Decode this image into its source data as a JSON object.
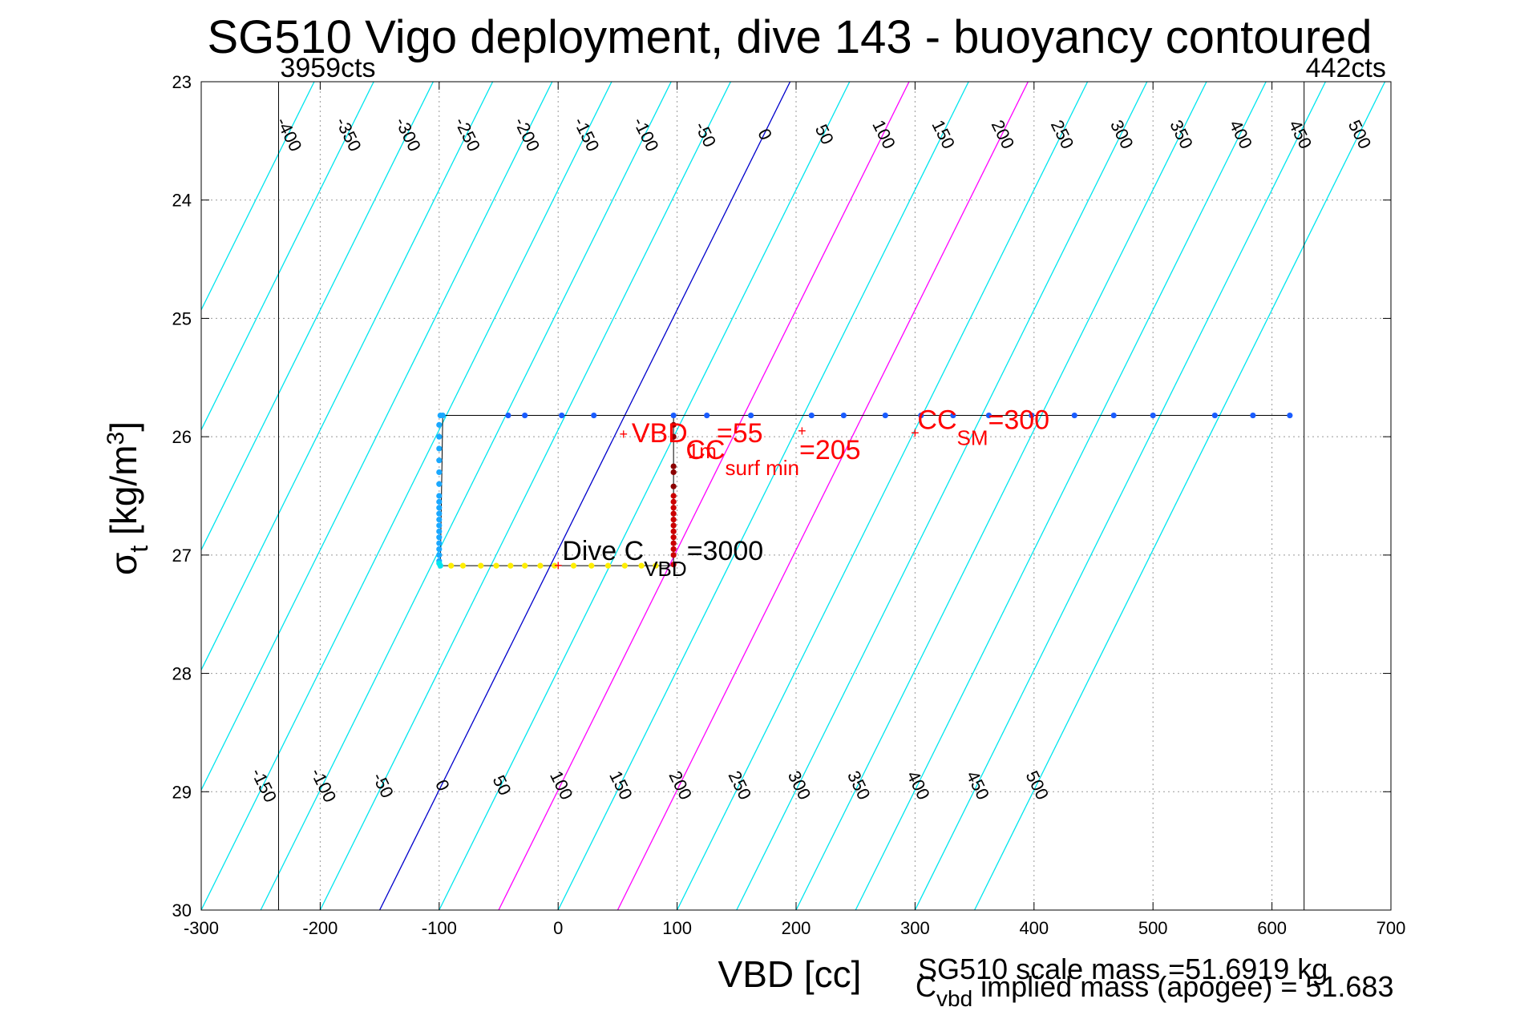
{
  "chart_data": {
    "type": "scatter",
    "title": "SG510 Vigo deployment, dive 143 - buoyancy contoured",
    "xlabel": "VBD [cc]",
    "ylabel": "σ_t [kg/m^3]",
    "ylabel_parts": {
      "main": "σ",
      "sub": "t",
      "unit": " [kg/m",
      "unit_sup": "3",
      "unit_end": "]"
    },
    "xlim": [
      -300,
      700
    ],
    "ylim": [
      23,
      30
    ],
    "y_reversed": true,
    "grid": true,
    "x_ticks": [
      -300,
      -200,
      -100,
      0,
      100,
      200,
      300,
      400,
      500,
      600,
      700
    ],
    "y_ticks": [
      23,
      24,
      25,
      26,
      27,
      28,
      29,
      30
    ],
    "x_tick_labels": [
      "-300",
      "-200",
      "-100",
      "0",
      "100",
      "200",
      "300",
      "400",
      "500",
      "600",
      "700"
    ],
    "y_tick_labels": [
      "23",
      "24",
      "25",
      "26",
      "27",
      "28",
      "29",
      "30"
    ],
    "vbd_limits": [
      {
        "vbd": -235,
        "label": "3959cts"
      },
      {
        "vbd": 627,
        "label": "442cts"
      }
    ],
    "contour_levels": [
      -400,
      -350,
      -300,
      -250,
      -200,
      -150,
      -100,
      -50,
      0,
      50,
      100,
      150,
      200,
      250,
      300,
      350,
      400,
      450,
      500
    ],
    "contour_zero_vbd_at_sigma23": 195,
    "contour_zero_vbd_at_sigma30": -150,
    "contour_colors": {
      "default": "#00e5ee",
      "zero": "#0000cc",
      "highlight": "#ff00ff"
    },
    "highlight_levels": [
      100,
      200
    ],
    "top_contour_labels": [
      "-400",
      "-350",
      "-300",
      "-250",
      "-200",
      "-150",
      "-100",
      "-50",
      "0",
      "50",
      "100",
      "150",
      "200",
      "250",
      "300",
      "350",
      "400",
      "450",
      "500"
    ],
    "bottom_contour_labels": [
      "-150",
      "-100",
      "-50",
      "0",
      "50",
      "100",
      "150",
      "200",
      "250",
      "300",
      "350",
      "400",
      "450",
      "500"
    ],
    "series": [
      {
        "color": "#1a5cff",
        "points": [
          [
            97,
            25.82
          ],
          [
            -42,
            25.82
          ],
          [
            -28,
            25.82
          ],
          [
            3,
            25.82
          ],
          [
            30,
            25.82
          ],
          [
            125,
            25.82
          ],
          [
            162,
            25.82
          ],
          [
            213,
            25.82
          ],
          [
            240,
            25.82
          ],
          [
            275,
            25.82
          ],
          [
            305,
            25.82
          ],
          [
            332,
            25.82
          ],
          [
            362,
            25.82
          ],
          [
            398,
            25.82
          ],
          [
            434,
            25.82
          ],
          [
            467,
            25.82
          ],
          [
            500,
            25.82
          ],
          [
            552,
            25.82
          ],
          [
            584,
            25.82
          ],
          [
            615,
            25.82
          ]
        ]
      },
      {
        "color": "#1aa8ff",
        "points": [
          [
            -97,
            25.82
          ],
          [
            -99,
            25.82
          ],
          [
            -100,
            25.9
          ],
          [
            -100,
            26.0
          ],
          [
            -100,
            26.1
          ],
          [
            -100,
            26.2
          ],
          [
            -100,
            26.3
          ],
          [
            -100,
            26.4
          ],
          [
            -100,
            26.5
          ],
          [
            -100,
            26.55
          ],
          [
            -100,
            26.6
          ],
          [
            -100,
            26.65
          ],
          [
            -100,
            26.7
          ],
          [
            -100,
            26.75
          ],
          [
            -100,
            26.8
          ],
          [
            -100,
            26.85
          ],
          [
            -100,
            26.9
          ],
          [
            -100,
            26.95
          ],
          [
            -100,
            27.0
          ],
          [
            -100,
            27.05
          ]
        ]
      },
      {
        "color": "#00e5ee",
        "points": [
          [
            -100,
            27.07
          ],
          [
            -99,
            27.09
          ]
        ]
      },
      {
        "color": "#ffee00",
        "points": [
          [
            -90,
            27.09
          ],
          [
            -80,
            27.09
          ],
          [
            -65,
            27.09
          ],
          [
            -52,
            27.09
          ],
          [
            -40,
            27.09
          ],
          [
            -28,
            27.09
          ],
          [
            -15,
            27.09
          ],
          [
            -3,
            27.09
          ],
          [
            13,
            27.09
          ],
          [
            28,
            27.09
          ],
          [
            42,
            27.09
          ],
          [
            56,
            27.09
          ],
          [
            70,
            27.09
          ],
          [
            82,
            27.09
          ]
        ]
      },
      {
        "color": "#cc0000",
        "points": [
          [
            97,
            27.08
          ],
          [
            97,
            27.0
          ],
          [
            97,
            26.95
          ],
          [
            97,
            26.9
          ],
          [
            97,
            26.85
          ],
          [
            97,
            26.8
          ],
          [
            97,
            26.75
          ],
          [
            97,
            26.7
          ],
          [
            97,
            26.65
          ],
          [
            97,
            26.6
          ],
          [
            97,
            26.55
          ],
          [
            97,
            26.5
          ]
        ]
      },
      {
        "color": "#8b0000",
        "points": [
          [
            97,
            26.42
          ],
          [
            97,
            26.3
          ],
          [
            97,
            26.25
          ],
          [
            97,
            26.0
          ],
          [
            97,
            25.9
          ]
        ]
      }
    ],
    "annotations": [
      {
        "vbd": 55,
        "sigma": 25.98,
        "color": "#ff0000",
        "main": "VBD",
        "sub": "1m",
        "rest": "=55"
      },
      {
        "vbd": 205,
        "sigma": 25.95,
        "color": "#ff0000",
        "main": "CC",
        "sub": "surf min",
        "rest": "=205"
      },
      {
        "vbd": 300,
        "sigma": 25.97,
        "color": "#ff0000",
        "main": "CC",
        "sub": "SM",
        "rest": "=300"
      },
      {
        "vbd": 0,
        "sigma": 27.09,
        "color": "#000000",
        "main": "Dive C",
        "sub": "VBD",
        "rest": "=3000"
      }
    ],
    "annotation_marker_color": "#ff0000",
    "footer": {
      "line1": "SG510 scale mass =51.6919 kg",
      "line2_main": "C",
      "line2_sub": "vbd",
      "line2_rest": " implied mass (apogee) = 51.683"
    }
  }
}
